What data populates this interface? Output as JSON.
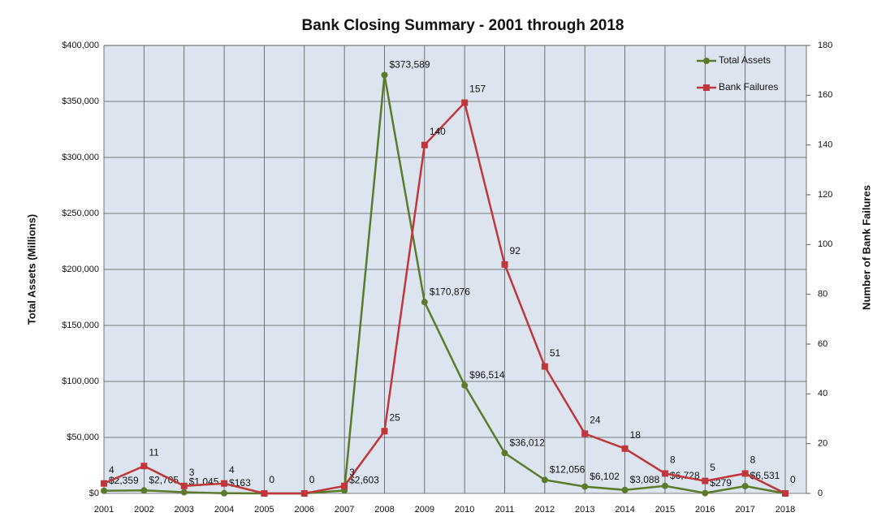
{
  "chart_data": {
    "type": "line",
    "title": "Bank Closing Summary - 2001 through 2018",
    "y_label": "Total Assets (Millions)",
    "y2_label": "Number of Bank Failures",
    "categories": [
      "2001",
      "2002",
      "2003",
      "2004",
      "2005",
      "2006",
      "2007",
      "2008",
      "2009",
      "2010",
      "2011",
      "2012",
      "2013",
      "2014",
      "2015",
      "2016",
      "2017",
      "2018"
    ],
    "series": [
      {
        "name": "Total Assets",
        "color": "#5b7a2b",
        "values": [
          2359,
          2705,
          1045,
          163,
          0,
          0,
          2603,
          373589,
          170876,
          96514,
          36012,
          12056,
          6102,
          3088,
          6728,
          279,
          6531,
          0
        ],
        "value_labels": [
          "$2,359",
          "$2,705",
          "$1,045",
          "$163",
          null,
          null,
          "$2,603",
          "$373,589",
          "$170,876",
          "$96,514",
          "$36,012",
          "$12,056",
          "$6,102",
          "$3,088",
          "$6,728",
          "$279",
          "$6,531",
          null
        ]
      },
      {
        "name": "Bank Failures",
        "color": "#c0363a",
        "axis": "y2",
        "values": [
          4,
          11,
          3,
          4,
          0,
          0,
          3,
          25,
          140,
          157,
          92,
          51,
          24,
          18,
          8,
          5,
          8,
          0
        ]
      }
    ],
    "ylim": [
      0,
      400000
    ],
    "yticks": [
      {
        "value": 0,
        "label": "$0"
      },
      {
        "value": 50000,
        "label": "$50,000"
      },
      {
        "value": 100000,
        "label": "$100,000"
      },
      {
        "value": 150000,
        "label": "$150,000"
      },
      {
        "value": 200000,
        "label": "$200,000"
      },
      {
        "value": 250000,
        "label": "$250,000"
      },
      {
        "value": 300000,
        "label": "$300,000"
      },
      {
        "value": 350000,
        "label": "$350,000"
      },
      {
        "value": 400000,
        "label": "$400,000"
      }
    ],
    "y2lim": [
      0,
      180
    ],
    "y2ticks": [
      0,
      20,
      40,
      60,
      80,
      100,
      120,
      140,
      160,
      180
    ],
    "grid": true,
    "legend": "top-right"
  }
}
